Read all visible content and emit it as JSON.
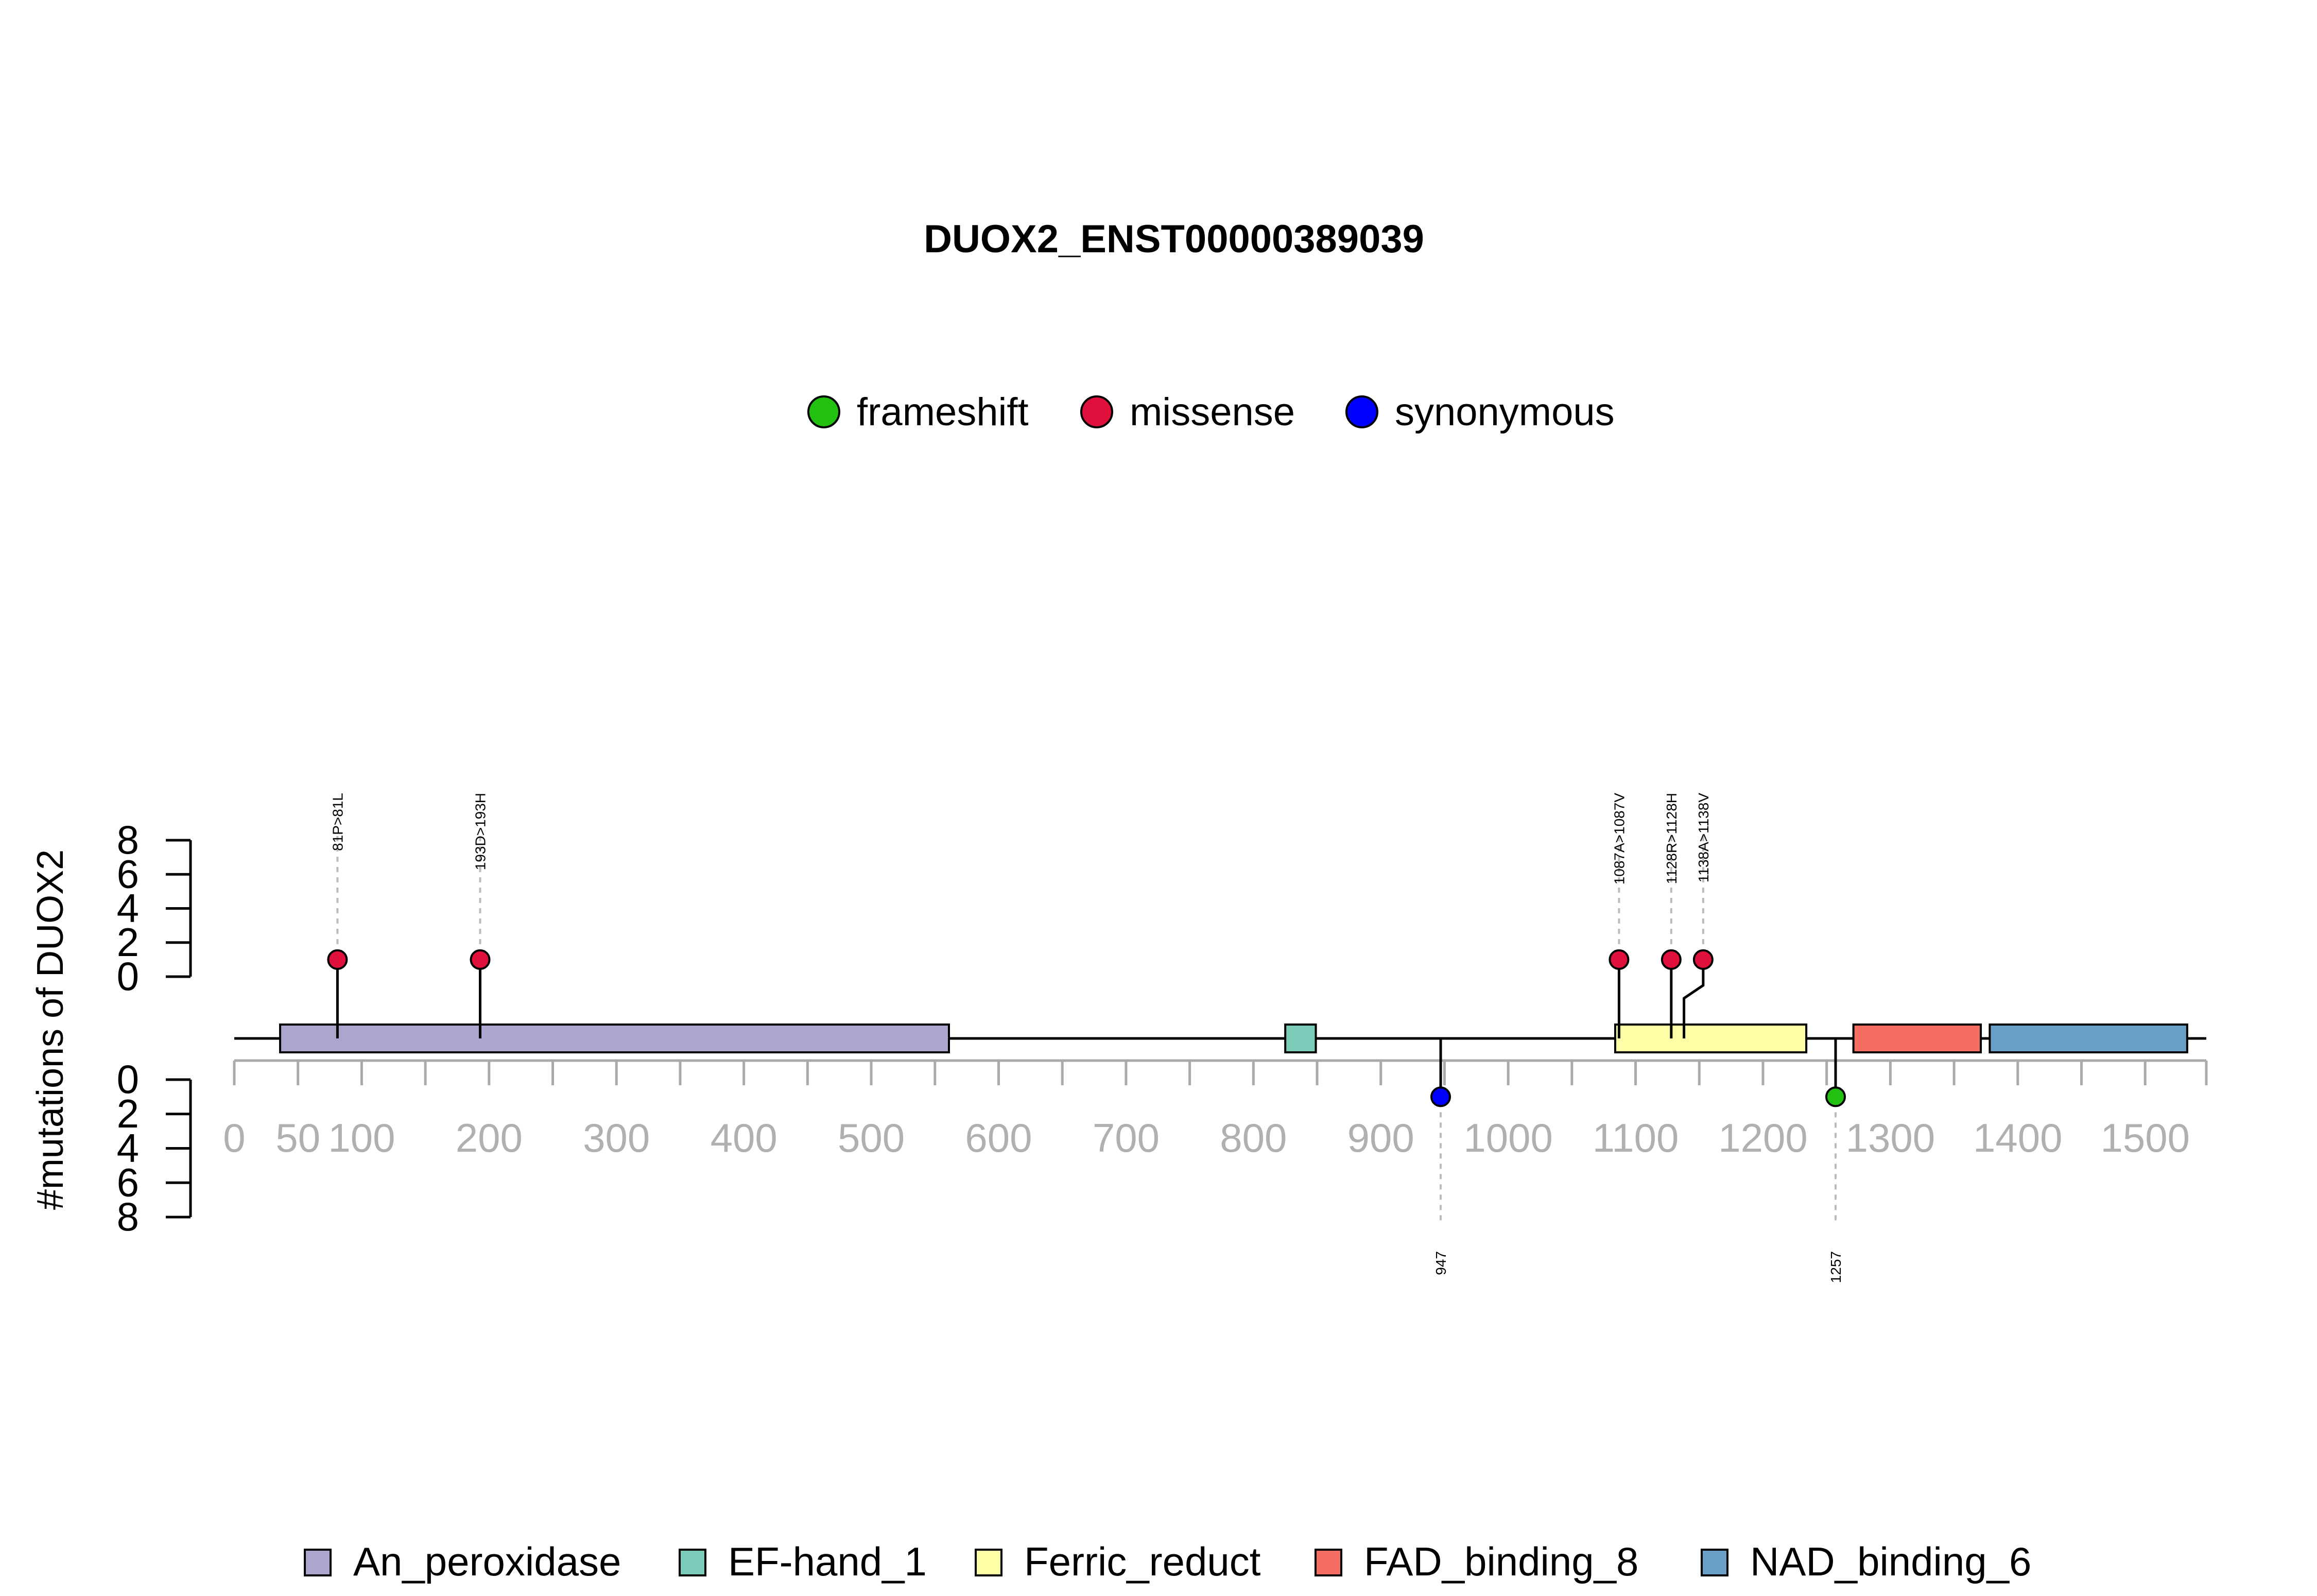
{
  "chart_data": {
    "type": "lollipop",
    "title": "DUOX2_ENST00000389039",
    "ylabel": "#mutations of DUOX2",
    "xlim": [
      0,
      1548
    ],
    "x_ticks": [
      0,
      50,
      100,
      200,
      300,
      400,
      500,
      600,
      700,
      800,
      900,
      1000,
      1100,
      1200,
      1300,
      1400,
      1500
    ],
    "y_ticks": [
      0,
      2,
      4,
      6,
      8
    ],
    "y_range": [
      0,
      8
    ],
    "legend_position": "top",
    "mutation_types": [
      {
        "name": "frameshift",
        "color": "#22c010"
      },
      {
        "name": "missense",
        "color": "#e0103c"
      },
      {
        "name": "synonymous",
        "color": "#0000ff"
      }
    ],
    "mutations_above": [
      {
        "pos": 81,
        "count": 1,
        "type": "missense",
        "label": "81P>81L"
      },
      {
        "pos": 193,
        "count": 1,
        "type": "missense",
        "label": "193D>193H"
      },
      {
        "pos": 1087,
        "count": 1,
        "type": "missense",
        "label": "1087A>1087V"
      },
      {
        "pos": 1128,
        "count": 1,
        "type": "missense",
        "label": "1128R>1128H"
      },
      {
        "pos": 1138,
        "count": 1,
        "type": "missense",
        "label": "1138A>1138V"
      }
    ],
    "mutations_below": [
      {
        "pos": 947,
        "count": 1,
        "type": "synonymous",
        "label": "947"
      },
      {
        "pos": 1257,
        "count": 1,
        "type": "frameshift",
        "label": "1257"
      }
    ],
    "domains": [
      {
        "name": "An_peroxidase",
        "start": 36,
        "end": 561,
        "color": "#aca5ce"
      },
      {
        "name": "EF-hand_1",
        "start": 825,
        "end": 849,
        "color": "#7bcbb9"
      },
      {
        "name": "Ferric_reduct",
        "start": 1084,
        "end": 1234,
        "color": "#ffffa8"
      },
      {
        "name": "FAD_binding_8",
        "start": 1271,
        "end": 1371,
        "color": "#f56e64"
      },
      {
        "name": "NAD_binding_6",
        "start": 1378,
        "end": 1533,
        "color": "#6a9fc8"
      }
    ]
  }
}
